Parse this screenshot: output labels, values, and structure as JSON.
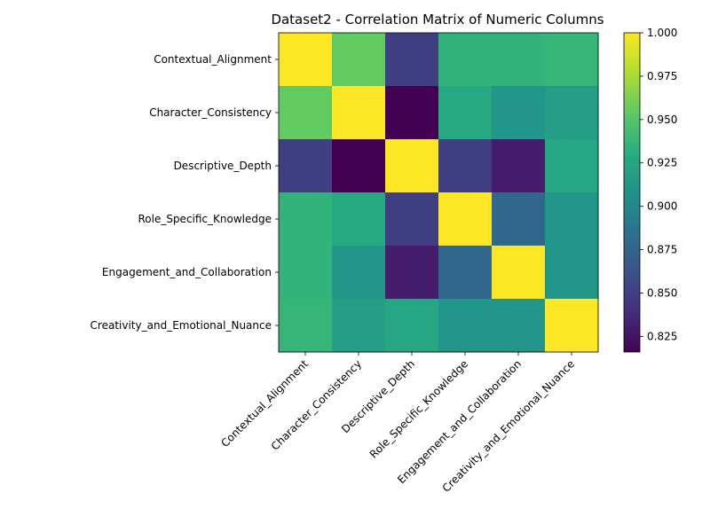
{
  "chart_data": {
    "type": "heatmap",
    "title": "Dataset2 - Correlation Matrix of Numeric Columns",
    "xlabel": "",
    "ylabel": "",
    "labels": [
      "Contextual_Alignment",
      "Character_Consistency",
      "Descriptive_Depth",
      "Role_Specific_Knowledge",
      "Engagement_and_Collaboration",
      "Creativity_and_Emotional_Nuance"
    ],
    "values": [
      [
        1.0,
        0.955,
        0.85,
        0.935,
        0.935,
        0.937
      ],
      [
        0.955,
        1.0,
        0.816,
        0.928,
        0.912,
        0.918
      ],
      [
        0.85,
        0.816,
        1.0,
        0.85,
        0.83,
        0.925
      ],
      [
        0.935,
        0.928,
        0.85,
        1.0,
        0.877,
        0.912
      ],
      [
        0.935,
        0.912,
        0.83,
        0.877,
        1.0,
        0.912
      ],
      [
        0.937,
        0.918,
        0.925,
        0.912,
        0.912,
        1.0
      ]
    ],
    "colormap": "viridis",
    "vmin": 0.816,
    "vmax": 1.0,
    "colorbar_ticks": [
      "0.825",
      "0.850",
      "0.875",
      "0.900",
      "0.925",
      "0.950",
      "0.975",
      "1.000"
    ]
  }
}
